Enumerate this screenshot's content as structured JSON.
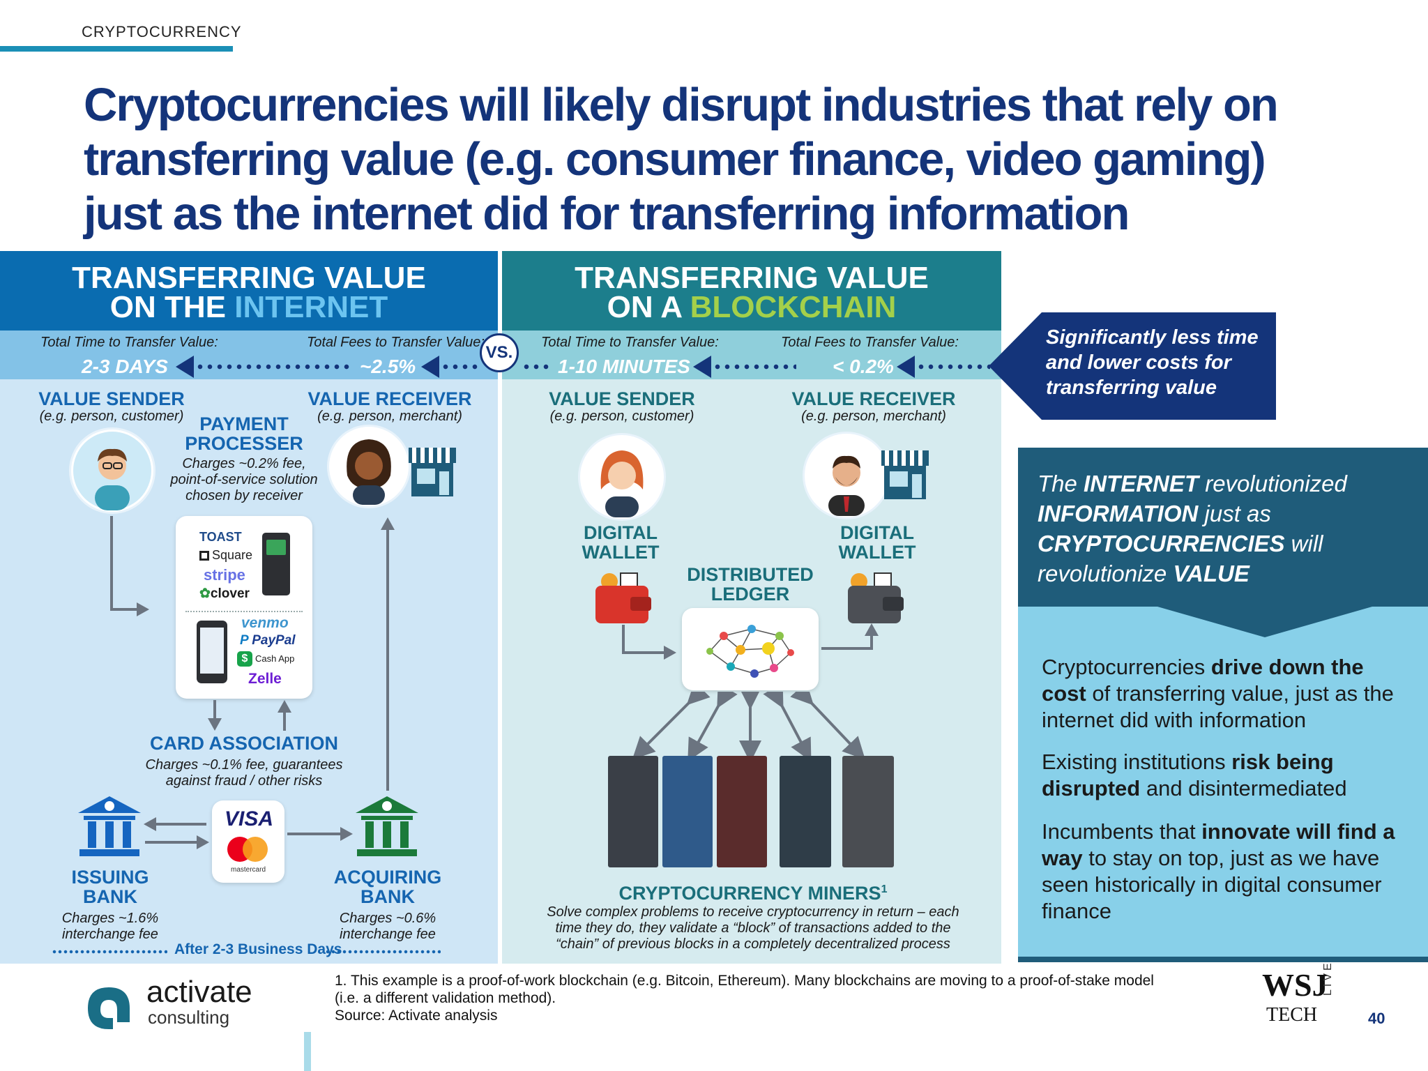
{
  "section_label": "CRYPTOCURRENCY",
  "headline": "Cryptocurrencies will likely disrupt industries that rely on transferring value (e.g. consumer finance, video gaming) just as the internet did for transferring information",
  "internet": {
    "title_line1": "TRANSFERRING VALUE",
    "title_line2_prefix": "ON THE ",
    "title_line2_accent": "INTERNET",
    "time_label": "Total Time to Transfer Value:",
    "time_value": "2-3 DAYS",
    "fees_label": "Total Fees to Transfer Value:",
    "fees_value": "~2.5%",
    "sender": {
      "title": "VALUE SENDER",
      "sub": "(e.g. person, customer)"
    },
    "receiver": {
      "title": "VALUE RECEIVER",
      "sub": "(e.g. person, merchant)"
    },
    "processor": {
      "title_line1": "PAYMENT",
      "title_line2": "PROCESSER",
      "desc_line1": "Charges ~0.2% fee,",
      "desc_line2": "point-of-service solution",
      "desc_line3": "chosen by receiver"
    },
    "processor_logos_top": [
      "TOAST",
      "Square",
      "stripe",
      "clover"
    ],
    "processor_logos_bottom": [
      "venmo",
      "PayPal",
      "Cash App",
      "Zelle"
    ],
    "card_association": {
      "title": "CARD ASSOCIATION",
      "desc_line1": "Charges ~0.1% fee, guarantees",
      "desc_line2": "against fraud / other risks"
    },
    "card_logos": {
      "visa": "VISA",
      "mastercard": "mastercard"
    },
    "issuing_bank": {
      "title_line1": "ISSUING",
      "title_line2": "BANK",
      "desc_line1": "Charges ~1.6%",
      "desc_line2": "interchange fee"
    },
    "acquiring_bank": {
      "title_line1": "ACQUIRING",
      "title_line2": "BANK",
      "desc_line1": "Charges ~0.6%",
      "desc_line2": "interchange fee"
    },
    "settlement": "After 2-3 Business Days"
  },
  "vs": "VS.",
  "blockchain": {
    "title_line1": "TRANSFERRING VALUE",
    "title_line2_prefix": "ON A ",
    "title_line2_accent": "BLOCKCHAIN",
    "time_label": "Total Time to Transfer Value:",
    "time_value": "1-10 MINUTES",
    "fees_label": "Total Fees to Transfer Value:",
    "fees_value": "< 0.2%",
    "sender": {
      "title": "VALUE SENDER",
      "sub": "(e.g. person, customer)"
    },
    "receiver": {
      "title": "VALUE RECEIVER",
      "sub": "(e.g. person, merchant)"
    },
    "sender_wallet": {
      "line1": "DIGITAL",
      "line2": "WALLET"
    },
    "receiver_wallet": {
      "line1": "DIGITAL",
      "line2": "WALLET"
    },
    "ledger": {
      "line1": "DISTRIBUTED",
      "line2": "LEDGER"
    },
    "miners": {
      "title": "CRYPTOCURRENCY MINERS",
      "sup": "1",
      "desc_line1": "Solve complex problems to receive cryptocurrency in return – each",
      "desc_line2": "time they do, they validate a “block” of transactions added to the",
      "desc_line3": "“chain” of previous blocks in a completely decentralized process"
    }
  },
  "callout": "Significantly less time and lower costs for transferring value",
  "sidebar": {
    "head": {
      "p1": "The ",
      "k1": "INTERNET",
      "p2": " revolutionized ",
      "k2": "INFORMATION",
      "p3": " just as ",
      "k3": "CRYPTOCURRENCIES",
      "p4": " will revolutionize ",
      "k4": "VALUE"
    },
    "bullets": [
      {
        "a": "Cryptocurrencies ",
        "b": "drive down the cost",
        "c": " of transferring value, just as the internet did with information"
      },
      {
        "a": "Existing institutions ",
        "b": "risk being disrupted",
        "c": " and disintermediated"
      },
      {
        "a": "Incumbents that ",
        "b": "innovate will find a way",
        "c": " to stay on top, just as we have seen historically in digital consumer finance"
      }
    ]
  },
  "footer": {
    "brand_line1": "activate",
    "brand_line2": "consulting",
    "note_line1": "1. This example is a proof-of-work blockchain (e.g. Bitcoin, Ethereum). Many blockchains are moving to a proof-of-stake model",
    "note_line2": "(i.e. a different validation method).",
    "source": "Source: Activate analysis",
    "wsj_line1": "WSJ",
    "wsj_line2": "TECH",
    "wsj_live": "LIVE",
    "page_number": "40"
  },
  "colors": {
    "navy": "#14347a",
    "internet_blue": "#0a6cb0",
    "blockchain_teal": "#1c7e8c",
    "accent_lightblue": "#6cc4f0",
    "accent_green": "#a4d04a"
  }
}
